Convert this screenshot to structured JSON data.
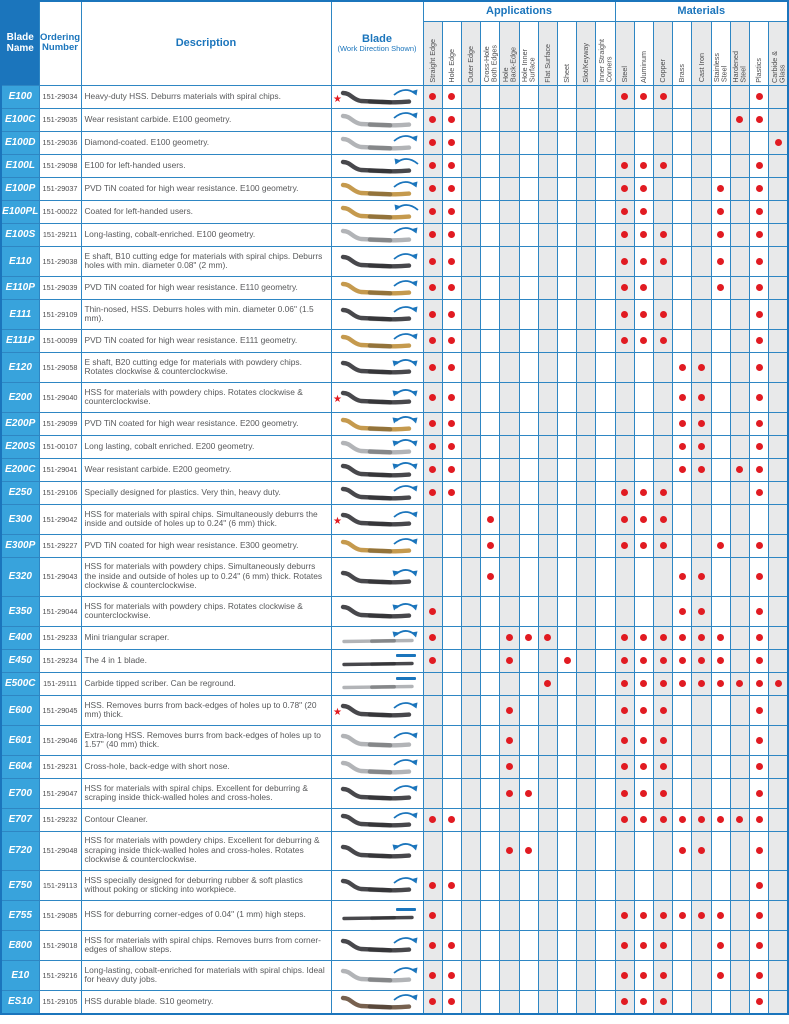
{
  "table": {
    "header": {
      "blade_name": "Blade\nName",
      "ordering_number": "Ordering\nNumber",
      "description": "Description",
      "blade": "Blade",
      "blade_sub": "(Work Direction Shown)",
      "applications_group": "Applications",
      "materials_group": "Materials"
    },
    "application_columns": [
      "Straight Edge",
      "Hole Edge",
      "Outer Edge",
      "Cross-Hole\nBoth Edges",
      "Hole\nBack-Edge",
      "Hole Inner\nSurface",
      "Flat Surface",
      "Sheet",
      "Slot/Keyway",
      "Inner Straight\nCorners"
    ],
    "material_columns": [
      "Steel",
      "Aluminum",
      "Copper",
      "Brass",
      "Cast Iron",
      "Stainless\nSteel",
      "Hardened\nSteel",
      "Plastics",
      "Carbide &\nGlass"
    ],
    "rows": [
      {
        "name": "E100",
        "ordering": "151-29034",
        "description": "Heavy-duty HSS. Deburrs materials with spiral chips.",
        "star": true,
        "blade_color": "dark",
        "shape": "s",
        "arrow": "arc",
        "lines": 1,
        "applications": [
          1,
          2
        ],
        "materials": [
          1,
          2,
          3,
          8
        ]
      },
      {
        "name": "E100C",
        "ordering": "151-29035",
        "description": "Wear resistant carbide. E100 geometry.",
        "star": false,
        "blade_color": "silver",
        "shape": "s",
        "arrow": "arc",
        "lines": 1,
        "applications": [
          1,
          2
        ],
        "materials": [
          7,
          8
        ]
      },
      {
        "name": "E100D",
        "ordering": "151-29036",
        "description": "Diamond-coated. E100 geometry.",
        "star": false,
        "blade_color": "silver",
        "shape": "s",
        "arrow": "arc",
        "lines": 1,
        "applications": [
          1,
          2
        ],
        "materials": [
          9
        ]
      },
      {
        "name": "E100L",
        "ordering": "151-29098",
        "description": "E100 for left-handed users.",
        "star": false,
        "blade_color": "dark",
        "shape": "s",
        "arrow": "arc-l",
        "lines": 1,
        "applications": [
          1,
          2
        ],
        "materials": [
          1,
          2,
          3,
          8
        ]
      },
      {
        "name": "E100P",
        "ordering": "151-29037",
        "description": "PVD TiN coated for high wear resistance. E100 geometry.",
        "star": false,
        "blade_color": "gold",
        "shape": "s",
        "arrow": "arc",
        "lines": 1,
        "applications": [
          1,
          2
        ],
        "materials": [
          1,
          2,
          6,
          8
        ]
      },
      {
        "name": "E100PL",
        "ordering": "151-00022",
        "description": "Coated for left-handed users.",
        "star": false,
        "blade_color": "gold",
        "shape": "s",
        "arrow": "arc-l",
        "lines": 1,
        "applications": [
          1,
          2
        ],
        "materials": [
          1,
          2,
          6,
          8
        ]
      },
      {
        "name": "E100S",
        "ordering": "151-29211",
        "description": "Long-lasting, cobalt-enriched. E100 geometry.",
        "star": false,
        "blade_color": "silver",
        "shape": "s",
        "arrow": "arc",
        "lines": 1,
        "applications": [
          1,
          2
        ],
        "materials": [
          1,
          2,
          3,
          6,
          8
        ]
      },
      {
        "name": "E110",
        "ordering": "151-29038",
        "description": "E shaft, B10 cutting edge for materials with spiral chips. Deburrs holes with min. diameter 0.08\" (2 mm).",
        "star": false,
        "blade_color": "dark",
        "shape": "s",
        "arrow": "arc",
        "lines": 2,
        "applications": [
          1,
          2
        ],
        "materials": [
          1,
          2,
          3,
          6,
          8
        ]
      },
      {
        "name": "E110P",
        "ordering": "151-29039",
        "description": "PVD TiN coated for high wear resistance. E110 geometry.",
        "star": false,
        "blade_color": "gold",
        "shape": "s",
        "arrow": "arc",
        "lines": 1,
        "applications": [
          1,
          2
        ],
        "materials": [
          1,
          2,
          6,
          8
        ]
      },
      {
        "name": "E111",
        "ordering": "151-29109",
        "description": "Thin-nosed, HSS. Deburrs holes with min. diameter 0.06\" (1.5 mm).",
        "star": false,
        "blade_color": "dark",
        "shape": "s",
        "arrow": "arc",
        "lines": 2,
        "applications": [
          1,
          2
        ],
        "materials": [
          1,
          2,
          3,
          8
        ]
      },
      {
        "name": "E111P",
        "ordering": "151-00099",
        "description": "PVD TiN coated for high wear resistance. E111 geometry.",
        "star": false,
        "blade_color": "gold",
        "shape": "s",
        "arrow": "arc",
        "lines": 1,
        "applications": [
          1,
          2
        ],
        "materials": [
          1,
          2,
          3,
          8
        ]
      },
      {
        "name": "E120",
        "ordering": "151-29058",
        "description": "E shaft, B20 cutting edge for materials with powdery chips. Rotates clockwise & counterclockwise.",
        "star": false,
        "blade_color": "dark",
        "shape": "s",
        "arrow": "double",
        "lines": 2,
        "applications": [
          1,
          2
        ],
        "materials": [
          4,
          5,
          8
        ]
      },
      {
        "name": "E200",
        "ordering": "151-29040",
        "description": "HSS for materials with powdery chips. Rotates clockwise & counterclockwise.",
        "star": true,
        "blade_color": "dark",
        "shape": "s",
        "arrow": "double",
        "lines": 2,
        "applications": [
          1,
          2
        ],
        "materials": [
          4,
          5,
          8
        ]
      },
      {
        "name": "E200P",
        "ordering": "151-29099",
        "description": "PVD TiN coated for high wear resistance. E200 geometry.",
        "star": false,
        "blade_color": "gold",
        "shape": "s",
        "arrow": "double",
        "lines": 1,
        "applications": [
          1,
          2
        ],
        "materials": [
          4,
          5,
          8
        ]
      },
      {
        "name": "E200S",
        "ordering": "151-00107",
        "description": "Long lasting, cobalt enriched. E200 geometry.",
        "star": false,
        "blade_color": "silver",
        "shape": "s",
        "arrow": "double",
        "lines": 1,
        "applications": [
          1,
          2
        ],
        "materials": [
          4,
          5,
          8
        ]
      },
      {
        "name": "E200C",
        "ordering": "151-29041",
        "description": "Wear resistant carbide. E200 geometry.",
        "star": false,
        "blade_color": "dark",
        "shape": "s",
        "arrow": "double",
        "lines": 1,
        "applications": [
          1,
          2
        ],
        "materials": [
          4,
          5,
          7,
          8
        ]
      },
      {
        "name": "E250",
        "ordering": "151-29106",
        "description": "Specially designed for plastics. Very thin, heavy duty.",
        "star": false,
        "blade_color": "dark",
        "shape": "s",
        "arrow": "arc",
        "lines": 1,
        "applications": [
          1,
          2
        ],
        "materials": [
          1,
          2,
          3,
          8
        ]
      },
      {
        "name": "E300",
        "ordering": "151-29042",
        "description": "HSS for materials with spiral chips. Simultaneously deburrs the inside and outside of holes up to 0.24\" (6 mm) thick.",
        "star": true,
        "blade_color": "dark",
        "shape": "s",
        "arrow": "arc",
        "lines": 2,
        "applications": [
          4
        ],
        "materials": [
          1,
          2,
          3
        ]
      },
      {
        "name": "E300P",
        "ordering": "151-29227",
        "description": "PVD TiN coated for high wear resistance. E300 geometry.",
        "star": false,
        "blade_color": "gold",
        "shape": "s",
        "arrow": "arc",
        "lines": 1,
        "applications": [
          4
        ],
        "materials": [
          1,
          2,
          3,
          6,
          8
        ]
      },
      {
        "name": "E320",
        "ordering": "151-29043",
        "description": "HSS for materials with powdery chips. Simultaneously deburrs the inside and outside of holes up to 0.24\" (6 mm) thick. Rotates clockwise & counterclockwise.",
        "star": false,
        "blade_color": "dark",
        "shape": "s",
        "arrow": "double",
        "lines": 3,
        "applications": [
          4
        ],
        "materials": [
          4,
          5,
          8
        ]
      },
      {
        "name": "E350",
        "ordering": "151-29044",
        "description": "HSS for materials with powdery chips. Rotates clockwise & counterclockwise.",
        "star": false,
        "blade_color": "dark",
        "shape": "s",
        "arrow": "double",
        "lines": 2,
        "applications": [
          1
        ],
        "materials": [
          4,
          5,
          8
        ]
      },
      {
        "name": "E400",
        "ordering": "151-29233",
        "description": "Mini triangular scraper.",
        "star": false,
        "blade_color": "silver",
        "shape": "rod",
        "arrow": "double",
        "lines": 1,
        "applications": [
          1,
          5,
          6,
          7
        ],
        "materials": [
          1,
          2,
          3,
          4,
          5,
          6,
          8
        ]
      },
      {
        "name": "E450",
        "ordering": "151-29234",
        "description": "The 4 in 1 blade.",
        "star": false,
        "blade_color": "dark",
        "shape": "rod",
        "arrow": "line",
        "lines": 1,
        "applications": [
          1,
          5,
          8
        ],
        "materials": [
          1,
          2,
          3,
          4,
          5,
          6,
          8
        ]
      },
      {
        "name": "E500C",
        "ordering": "151-29111",
        "description": "Carbide tipped scriber. Can be reground.",
        "star": false,
        "blade_color": "silver",
        "shape": "rod",
        "arrow": "line",
        "lines": 1,
        "applications": [
          7
        ],
        "materials": [
          1,
          2,
          3,
          4,
          5,
          6,
          7,
          8,
          9
        ]
      },
      {
        "name": "E600",
        "ordering": "151-29045",
        "description": "HSS. Removes burrs from back-edges of holes up to 0.78\" (20 mm) thick.",
        "star": true,
        "blade_color": "dark",
        "shape": "s",
        "arrow": "arc",
        "lines": 2,
        "applications": [
          5
        ],
        "materials": [
          1,
          2,
          3,
          8
        ]
      },
      {
        "name": "E601",
        "ordering": "151-29046",
        "description": "Extra-long HSS. Removes burrs from back-edges of holes up to 1.57\" (40 mm) thick.",
        "star": false,
        "blade_color": "silver",
        "shape": "s",
        "arrow": "arc",
        "lines": 2,
        "applications": [
          5
        ],
        "materials": [
          1,
          2,
          3,
          8
        ]
      },
      {
        "name": "E604",
        "ordering": "151-29231",
        "description": "Cross-hole, back-edge with short nose.",
        "star": false,
        "blade_color": "silver",
        "shape": "s",
        "arrow": "arc",
        "lines": 1,
        "applications": [
          5
        ],
        "materials": [
          1,
          2,
          3,
          8
        ]
      },
      {
        "name": "E700",
        "ordering": "151-29047",
        "description": "HSS for materials with spiral chips. Excellent for deburring & scraping inside thick-walled holes and cross-holes.",
        "star": false,
        "blade_color": "dark",
        "shape": "s",
        "arrow": "arc",
        "lines": 2,
        "applications": [
          5,
          6
        ],
        "materials": [
          1,
          2,
          3,
          8
        ]
      },
      {
        "name": "E707",
        "ordering": "151-29232",
        "description": "Contour Cleaner.",
        "star": false,
        "blade_color": "dark",
        "shape": "s",
        "arrow": "arc",
        "lines": 1,
        "applications": [
          1,
          2
        ],
        "materials": [
          1,
          2,
          3,
          4,
          5,
          6,
          7,
          8
        ]
      },
      {
        "name": "E720",
        "ordering": "151-29048",
        "description": "HSS for materials with powdery chips. Excellent for deburring & scraping inside thick-walled holes and cross-holes. Rotates clockwise & counterclockwise.",
        "star": false,
        "blade_color": "dark",
        "shape": "s",
        "arrow": "double",
        "lines": 3,
        "applications": [
          5,
          6
        ],
        "materials": [
          4,
          5,
          8
        ]
      },
      {
        "name": "E750",
        "ordering": "151-29113",
        "description": "HSS specially designed for deburring rubber & soft plastics without poking or sticking into workpiece.",
        "star": false,
        "blade_color": "dark",
        "shape": "s",
        "arrow": "arc",
        "lines": 2,
        "applications": [
          1,
          2
        ],
        "materials": [
          8
        ]
      },
      {
        "name": "E755",
        "ordering": "151-29085",
        "description": "HSS for deburring corner-edges of 0.04\" (1 mm) high steps.",
        "star": false,
        "blade_color": "dark",
        "shape": "rod",
        "arrow": "line",
        "lines": 2,
        "applications": [
          1
        ],
        "materials": [
          1,
          2,
          3,
          4,
          5,
          6,
          8
        ]
      },
      {
        "name": "E800",
        "ordering": "151-29018",
        "description": "HSS for materials with spiral chips. Removes burrs from corner-edges of shallow steps.",
        "star": false,
        "blade_color": "dark",
        "shape": "s",
        "arrow": "arc",
        "lines": 2,
        "applications": [
          1,
          2
        ],
        "materials": [
          1,
          2,
          3,
          6,
          8
        ]
      },
      {
        "name": "E10",
        "ordering": "151-29216",
        "description": "Long-lasting, cobalt-enriched for materials with spiral chips. Ideal for heavy duty jobs.",
        "star": false,
        "blade_color": "silver",
        "shape": "s",
        "arrow": "arc",
        "lines": 2,
        "applications": [
          1,
          2
        ],
        "materials": [
          1,
          2,
          3,
          6,
          8
        ]
      },
      {
        "name": "ES10",
        "ordering": "151-29105",
        "description": "HSS durable blade. S10 geometry.",
        "star": false,
        "blade_color": "brown",
        "shape": "s",
        "arrow": "arc",
        "lines": 1,
        "applications": [
          1,
          2
        ],
        "materials": [
          1,
          2,
          3,
          8
        ]
      }
    ]
  },
  "colors": {
    "accent_blue": "#1b75bc",
    "grid_blue": "#2e86c3",
    "name_cell_blue": "#38a3dc",
    "dot_red": "#e11b22",
    "shade_gray": "#e8e9ea",
    "star_red": "#e11b22",
    "blade_dark": "#48484c",
    "blade_gold": "#c59a4e",
    "blade_silver": "#b2b4b7",
    "blade_brown": "#77614f"
  }
}
